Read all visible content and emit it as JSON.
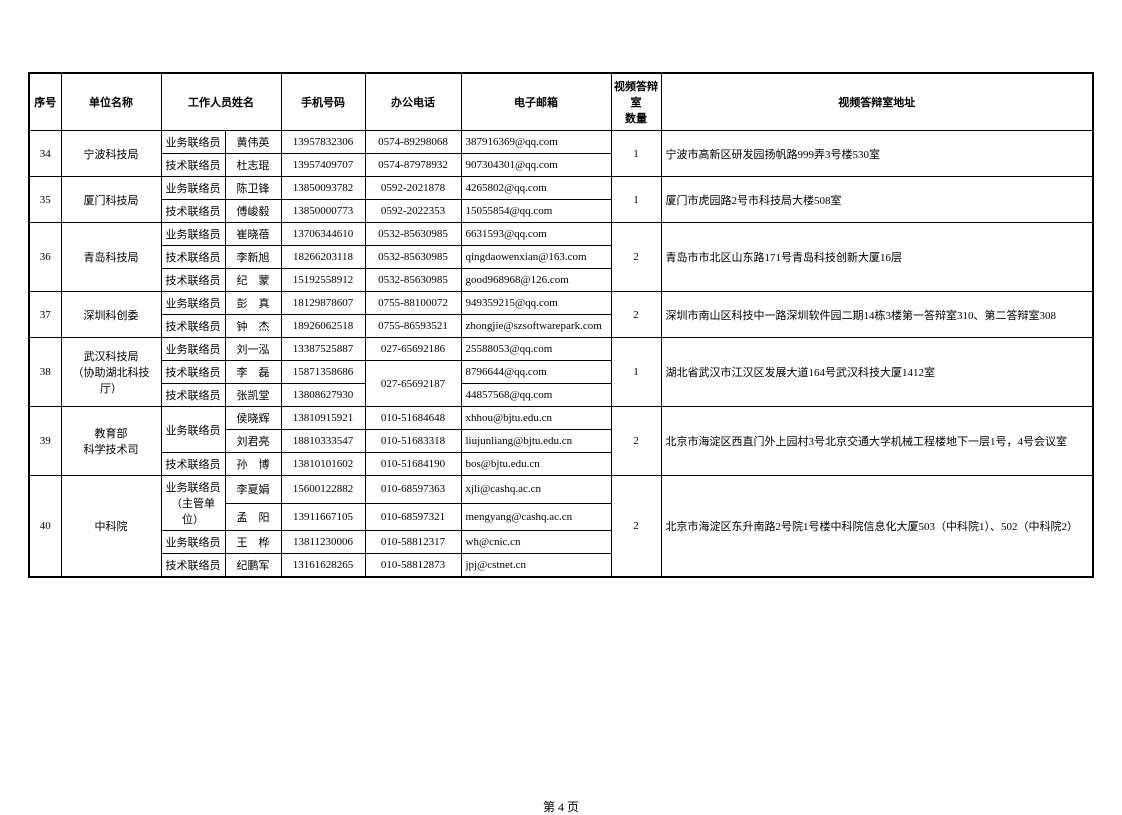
{
  "page_label": "第 4 页",
  "columns": {
    "seq": "序号",
    "org": "单位名称",
    "staff": "工作人员姓名",
    "mobile": "手机号码",
    "office": "办公电话",
    "email": "电子邮箱",
    "room_count": "视频答辩室\n数量",
    "address": "视频答辩室地址"
  },
  "groups": [
    {
      "seq": "34",
      "org": "宁波科技局",
      "room_count": "1",
      "address": "宁波市高新区研发园扬帆路999弄3号楼530室",
      "rows": [
        {
          "role": "业务联络员",
          "name": "黄伟英",
          "mobile": "13957832306",
          "office": "0574-89298068",
          "email": "387916369@qq.com"
        },
        {
          "role": "技术联络员",
          "name": "杜志琨",
          "mobile": "13957409707",
          "office": "0574-87978932",
          "email": "907304301@qq.com"
        }
      ]
    },
    {
      "seq": "35",
      "org": "厦门科技局",
      "room_count": "1",
      "address": "厦门市虎园路2号市科技局大楼508室",
      "rows": [
        {
          "role": "业务联络员",
          "name": "陈卫锋",
          "mobile": "13850093782",
          "office": "0592-2021878",
          "email": "4265802@qq.com"
        },
        {
          "role": "技术联络员",
          "name": "傅峻毅",
          "mobile": "13850000773",
          "office": "0592-2022353",
          "email": "15055854@qq.com"
        }
      ]
    },
    {
      "seq": "36",
      "org": "青岛科技局",
      "room_count": "2",
      "address": "青岛市市北区山东路171号青岛科技创新大厦16层",
      "rows": [
        {
          "role": "业务联络员",
          "name": "崔晓蓓",
          "mobile": "13706344610",
          "office": "0532-85630985",
          "email": "6631593@qq.com"
        },
        {
          "role": "技术联络员",
          "name": "李新旭",
          "mobile": "18266203118",
          "office": "0532-85630985",
          "email": "qingdaowenxian@163.com"
        },
        {
          "role": "技术联络员",
          "name": "纪　蒙",
          "mobile": "15192558912",
          "office": "0532-85630985",
          "email": "good968968@126.com"
        }
      ]
    },
    {
      "seq": "37",
      "org": "深圳科创委",
      "room_count": "2",
      "address": "深圳市南山区科技中一路深圳软件园二期14栋3楼第一答辩室310、第二答辩室308",
      "rows": [
        {
          "role": "业务联络员",
          "name": "彭　真",
          "mobile": "18129878607",
          "office": "0755-88100072",
          "email": "949359215@qq.com"
        },
        {
          "role": "技术联络员",
          "name": "钟　杰",
          "mobile": "18926062518",
          "office": "0755-86593521",
          "email": "zhongjie@szsoftwarepark.com"
        }
      ]
    },
    {
      "seq": "38",
      "org": "武汉科技局\n（协助湖北科技厅）",
      "room_count": "1",
      "address": "湖北省武汉市江汉区发展大道164号武汉科技大厦1412室",
      "office_merge": {
        "start": 1,
        "span": 2,
        "value": "027-65692187"
      },
      "rows": [
        {
          "role": "业务联络员",
          "name": "刘一泓",
          "mobile": "13387525887",
          "office": "027-65692186",
          "email": "25588053@qq.com"
        },
        {
          "role": "技术联络员",
          "name": "李　磊",
          "mobile": "15871358686",
          "email": "8796644@qq.com"
        },
        {
          "role": "技术联络员",
          "name": "张凯堂",
          "mobile": "13808627930",
          "email": "44857568@qq.com"
        }
      ]
    },
    {
      "seq": "39",
      "org": "教育部\n科学技术司",
      "room_count": "2",
      "address": "北京市海淀区西直门外上园村3号北京交通大学机械工程楼地下一层1号，4号会议室",
      "role_merge": {
        "start": 0,
        "span": 2,
        "value": "业务联络员"
      },
      "rows": [
        {
          "name": "侯晓辉",
          "mobile": "13810915921",
          "office": "010-51684648",
          "email": "xhhou@bjtu.edu.cn"
        },
        {
          "name": "刘君亮",
          "mobile": "18810333547",
          "office": "010-51683318",
          "email": "liujunliang@bjtu.edu.cn"
        },
        {
          "role": "技术联络员",
          "name": "孙　博",
          "mobile": "13810101602",
          "office": "010-51684190",
          "email": "bos@bjtu.edu.cn"
        }
      ]
    },
    {
      "seq": "40",
      "org": "中科院",
      "room_count": "2",
      "address": "北京市海淀区东升南路2号院1号楼中科院信息化大厦503（中科院1）、502（中科院2）",
      "role_merge": {
        "start": 0,
        "span": 2,
        "value": "业务联络员\n（主管单位）"
      },
      "rows": [
        {
          "name": "李夏娟",
          "mobile": "15600122882",
          "office": "010-68597363",
          "email": "xjli@cashq.ac.cn"
        },
        {
          "name": "孟　阳",
          "mobile": "13911667105",
          "office": "010-68597321",
          "email": "mengyang@cashq.ac.cn"
        },
        {
          "role": "业务联络员",
          "name": "王　桦",
          "mobile": "13811230006",
          "office": "010-58812317",
          "email": "wh@cnic.cn"
        },
        {
          "role": "技术联络员",
          "name": "纪鹏军",
          "mobile": "13161628265",
          "office": "010-58812873",
          "email": "jpj@cstnet.cn"
        }
      ]
    }
  ]
}
